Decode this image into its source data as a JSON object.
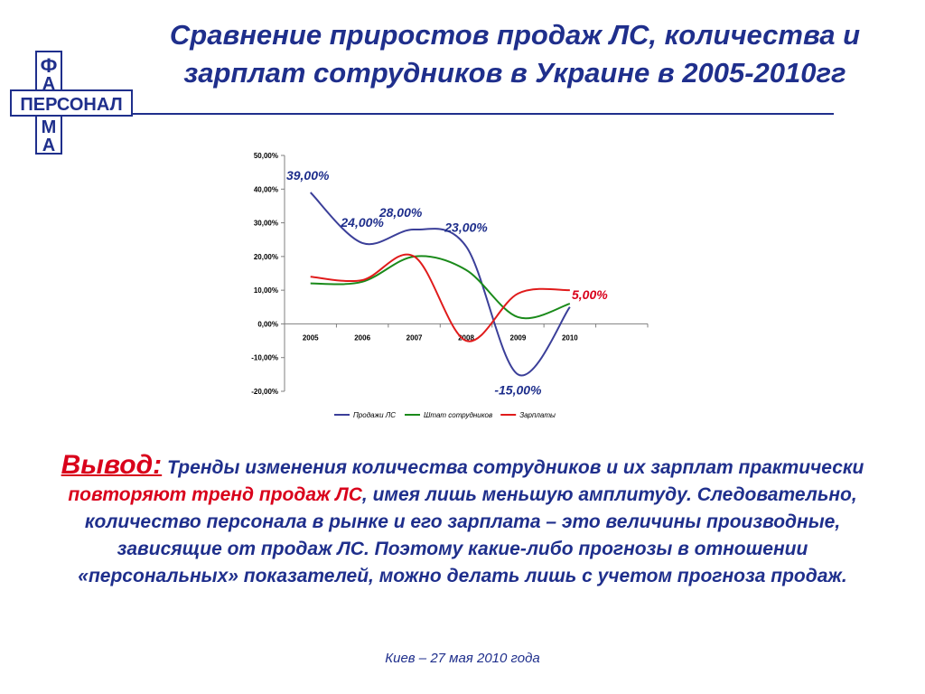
{
  "logo": {
    "vertical_top": [
      "Ф",
      "А"
    ],
    "horizontal": "ПЕРСОНАЛ",
    "vertical_bottom": [
      "М",
      "А"
    ]
  },
  "title": "Сравнение приростов продаж ЛС, количества и зарплат сотрудников в Украине в 2005-2010гг",
  "conclusion": {
    "lead": "Вывод:",
    "text1": " Тренды изменения количества сотрудников и их зарплат практически ",
    "highlight": "повторяют тренд продаж ЛС",
    "text2": ", имея лишь меньшую амплитуду. Следовательно, количество персонала в рынке и его зарплата – это величины производные, зависящие от продаж ЛС. Поэтому какие-либо прогнозы в отношении «персональных» показателей, можно делать лишь с учетом прогноза продаж."
  },
  "footer": "Киев – 27 мая 2010 года",
  "colors": {
    "title": "#1f2f8c",
    "accent": "#d9001b"
  },
  "chart_data": {
    "type": "line",
    "x": [
      "2005",
      "2006",
      "2007",
      "2008",
      "2009",
      "2010"
    ],
    "ylim": [
      -20,
      50
    ],
    "yticks": [
      "50,00%",
      "40,00%",
      "30,00%",
      "20,00%",
      "10,00%",
      "0,00%",
      "-10,00%",
      "-20,00%"
    ],
    "ytick_values": [
      50,
      40,
      30,
      20,
      10,
      0,
      -10,
      -20
    ],
    "grid": false,
    "legend_position": "bottom",
    "series": [
      {
        "name": "Продажи ЛС",
        "color": "#3b3f99",
        "values": [
          39,
          24,
          28,
          23,
          -15,
          5
        ]
      },
      {
        "name": "Штат сотрудников",
        "color": "#1a8a1a",
        "values": [
          12,
          12.5,
          20,
          16,
          2,
          6
        ]
      },
      {
        "name": "Зарплаты",
        "color": "#e01b1b",
        "values": [
          14,
          13,
          20,
          -5,
          9,
          10
        ]
      }
    ],
    "annotations": [
      {
        "text": "39,00%",
        "x": "2005",
        "y": 39,
        "color": "#1f2f8c"
      },
      {
        "text": "24,00%",
        "x": "2006",
        "y": 24,
        "color": "#1f2f8c"
      },
      {
        "text": "28,00%",
        "x": "2007",
        "y": 28,
        "color": "#1f2f8c"
      },
      {
        "text": "23,00%",
        "x": "2008",
        "y": 23,
        "color": "#1f2f8c"
      },
      {
        "text": "-15,00%",
        "x": "2009",
        "y": -15,
        "color": "#1f2f8c"
      },
      {
        "text": "5,00%",
        "x": "2010",
        "y": 5,
        "color": "#d9001b"
      }
    ]
  }
}
